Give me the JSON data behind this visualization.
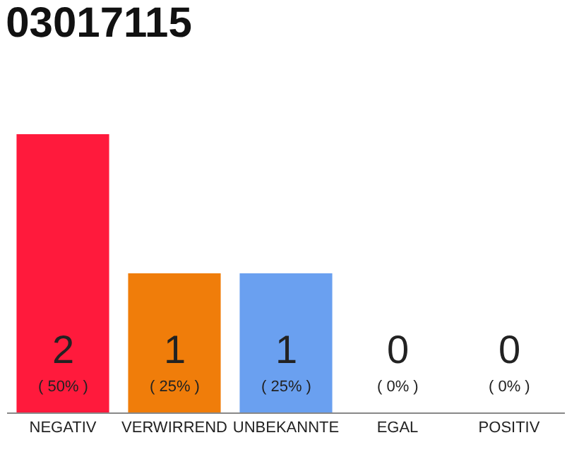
{
  "chart_data": {
    "type": "bar",
    "title": "03017115",
    "categories": [
      "NEGATIV",
      "VERWIRREND",
      "UNBEKANNTE",
      "EGAL",
      "POSITIV"
    ],
    "values": [
      2,
      1,
      1,
      0,
      0
    ],
    "colors": [
      "#ff1a3c",
      "#f07d0a",
      "#6aa0f0",
      "#cccccc",
      "#cccccc"
    ],
    "ylim": [
      0,
      2
    ],
    "data_labels": true,
    "annotations": [
      "( 50% )",
      "( 25% )",
      "( 25% )",
      "( 0% )",
      "( 0% )"
    ],
    "tick_labels": "x"
  }
}
